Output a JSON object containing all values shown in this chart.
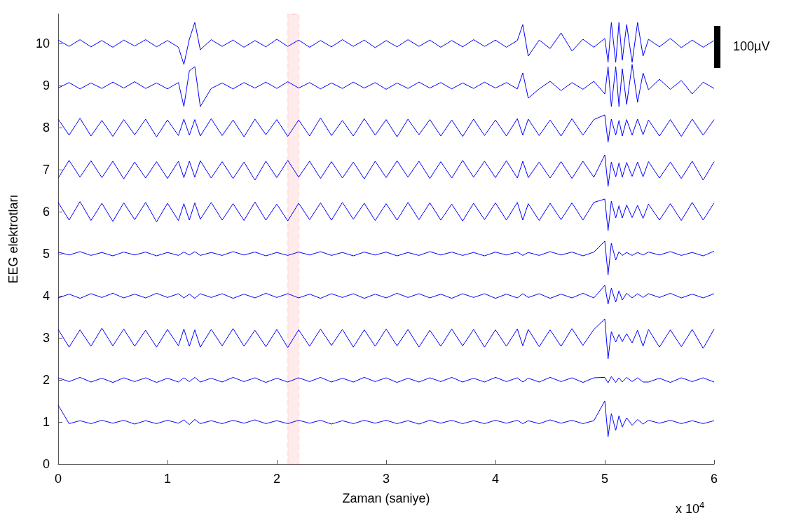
{
  "chart_data": {
    "type": "line",
    "xlabel": "Zaman (saniye)",
    "ylabel": "EEG elektrotları",
    "annotations": [
      "x 10$^{4}$",
      "100µV"
    ],
    "x": [
      0,
      0.1,
      0.2,
      0.3,
      0.4,
      0.5,
      0.6,
      0.7,
      0.8,
      0.9,
      1,
      1.1,
      1.15,
      1.2,
      1.25,
      1.3,
      1.4,
      1.5,
      1.6,
      1.7,
      1.8,
      1.9,
      2,
      2.1,
      2.2,
      2.3,
      2.4,
      2.5,
      2.6,
      2.7,
      2.8,
      2.9,
      3,
      3.1,
      3.2,
      3.3,
      3.4,
      3.5,
      3.6,
      3.7,
      3.8,
      3.9,
      4,
      4.1,
      4.2,
      4.25,
      4.3,
      4.4,
      4.5,
      4.6,
      4.7,
      4.8,
      4.9,
      5,
      5.03,
      5.06,
      5.1,
      5.13,
      5.16,
      5.2,
      5.25,
      5.3,
      5.35,
      5.4,
      5.5,
      5.6,
      5.7,
      5.8,
      5.9,
      6
    ],
    "xlim": [
      0,
      6
    ],
    "xticks": [
      0,
      1,
      2,
      3,
      4,
      5,
      6
    ],
    "ylim": [
      0,
      10.7
    ],
    "yticks": [
      0,
      1,
      2,
      3,
      4,
      5,
      6,
      7,
      8,
      9,
      10
    ],
    "bands": [
      {
        "axis": "x",
        "from": 2.1,
        "to": 2.2,
        "color": "#ff0000"
      }
    ],
    "series": [
      {
        "color": "#0000ff",
        "values": [
          10.08,
          9.93,
          10.09,
          9.92,
          10.07,
          9.91,
          10.08,
          9.94,
          10.09,
          9.92,
          10.07,
          9.91,
          9.5,
          10.1,
          10.5,
          9.85,
          10.09,
          9.93,
          10.08,
          9.91,
          10.07,
          9.92,
          10.1,
          9.93,
          10.08,
          9.91,
          10.07,
          9.92,
          10.09,
          9.93,
          10.08,
          9.9,
          10.07,
          9.92,
          10.09,
          9.93,
          10.08,
          9.91,
          10.07,
          9.92,
          10.09,
          9.93,
          10.08,
          9.91,
          10.07,
          10.45,
          9.7,
          10.08,
          9.88,
          10.25,
          9.82,
          10.1,
          9.91,
          10.12,
          9.55,
          10.5,
          9.55,
          10.5,
          9.6,
          10.45,
          9.55,
          10.5,
          9.7,
          10.1,
          9.92,
          10.12,
          9.9,
          10.08,
          9.91,
          10.07
        ]
      },
      {
        "color": "#0000ff",
        "values": [
          8.94,
          9.07,
          8.92,
          9.06,
          8.93,
          9.08,
          8.94,
          9.09,
          8.93,
          9.06,
          8.92,
          9.07,
          8.5,
          9.35,
          9.45,
          8.5,
          8.93,
          9.06,
          8.92,
          9.07,
          8.94,
          9.08,
          8.93,
          9.09,
          8.94,
          9.07,
          8.92,
          9.06,
          8.93,
          9.08,
          8.94,
          9.07,
          8.91,
          9.06,
          8.93,
          9.08,
          8.94,
          9.07,
          8.92,
          9.06,
          8.93,
          9.08,
          8.94,
          9.07,
          8.92,
          9.3,
          8.7,
          8.92,
          9.1,
          8.88,
          9.07,
          8.91,
          9.1,
          8.8,
          9.45,
          8.5,
          9.45,
          8.5,
          9.4,
          8.55,
          9.5,
          8.6,
          9.3,
          8.9,
          9.15,
          8.91,
          9.12,
          8.8,
          9.08,
          8.93
        ]
      },
      {
        "color": "#0000ff",
        "values": [
          8.2,
          7.82,
          8.22,
          7.8,
          8.17,
          7.79,
          8.19,
          7.83,
          8.2,
          7.78,
          8.18,
          7.81,
          8.2,
          7.82,
          8.19,
          7.8,
          8.21,
          7.81,
          8.18,
          7.78,
          8.2,
          7.83,
          8.19,
          7.79,
          8.18,
          7.8,
          8.23,
          7.81,
          8.17,
          7.8,
          8.21,
          7.82,
          8.19,
          7.78,
          8.2,
          7.83,
          8.19,
          7.8,
          8.18,
          7.79,
          8.2,
          7.81,
          8.18,
          7.8,
          8.21,
          7.82,
          8.2,
          7.81,
          8.18,
          7.8,
          8.21,
          7.82,
          8.19,
          8.3,
          7.65,
          8.2,
          7.82,
          8.17,
          7.8,
          8.19,
          7.82,
          8.2,
          7.83,
          8.18,
          7.8,
          8.19,
          7.79,
          8.2,
          7.82,
          8.19
        ]
      },
      {
        "color": "#0000ff",
        "values": [
          6.8,
          7.22,
          6.82,
          7.21,
          6.81,
          7.2,
          6.78,
          7.18,
          6.8,
          7.19,
          6.79,
          7.2,
          6.81,
          7.2,
          6.82,
          7.21,
          6.8,
          7.19,
          6.79,
          7.18,
          6.75,
          7.2,
          6.81,
          7.22,
          6.82,
          7.2,
          6.79,
          7.19,
          6.8,
          7.18,
          6.78,
          7.2,
          6.81,
          7.21,
          6.82,
          7.2,
          6.79,
          7.19,
          6.8,
          7.22,
          6.82,
          7.2,
          6.81,
          7.21,
          6.8,
          7.2,
          6.81,
          7.18,
          6.8,
          7.19,
          6.79,
          7.2,
          6.82,
          7.35,
          6.6,
          7.18,
          6.83,
          7.16,
          6.82,
          7.17,
          6.84,
          7.18,
          6.83,
          7.19,
          6.8,
          7.18,
          6.79,
          7.2,
          6.75,
          7.19
        ]
      },
      {
        "color": "#0000ff",
        "values": [
          6.22,
          5.8,
          6.24,
          5.79,
          6.2,
          5.77,
          6.21,
          5.81,
          6.22,
          5.76,
          6.2,
          5.79,
          6.19,
          5.8,
          6.21,
          5.82,
          6.22,
          5.8,
          6.19,
          5.79,
          6.23,
          5.8,
          6.18,
          5.78,
          6.2,
          5.81,
          6.21,
          5.8,
          6.22,
          5.82,
          6.2,
          5.79,
          6.19,
          5.8,
          6.22,
          5.81,
          6.21,
          5.8,
          6.18,
          5.78,
          6.2,
          5.81,
          6.21,
          5.8,
          6.22,
          5.8,
          6.19,
          5.79,
          6.2,
          5.81,
          6.21,
          5.8,
          6.22,
          6.3,
          5.55,
          6.25,
          5.85,
          6.14,
          5.85,
          6.16,
          5.86,
          6.15,
          5.84,
          6.18,
          5.8,
          6.19,
          5.79,
          6.22,
          5.8,
          6.21
        ]
      },
      {
        "color": "#0000ff",
        "values": [
          5.04,
          4.97,
          5.05,
          4.96,
          5.03,
          4.95,
          5.04,
          4.97,
          5.04,
          4.95,
          5.03,
          4.96,
          5.04,
          4.97,
          5.05,
          4.96,
          5.03,
          4.96,
          5.05,
          4.97,
          5.04,
          4.95,
          5.03,
          4.96,
          5.04,
          4.97,
          5.05,
          4.96,
          5.03,
          4.95,
          5.04,
          4.97,
          5.04,
          4.95,
          5.03,
          4.96,
          5.05,
          4.97,
          5.04,
          4.96,
          5.03,
          4.95,
          5.04,
          4.97,
          5.04,
          4.96,
          5.03,
          4.96,
          5.05,
          4.97,
          5.04,
          4.95,
          5.04,
          5.3,
          4.5,
          5.25,
          4.85,
          5.05,
          4.96,
          5.03,
          4.96,
          5.03,
          4.97,
          5.04,
          4.97,
          5.05,
          4.96,
          5.03,
          4.95,
          5.06
        ]
      },
      {
        "color": "#0000ff",
        "values": [
          3.95,
          4.04,
          3.94,
          4.05,
          3.96,
          4.06,
          3.95,
          4.04,
          3.95,
          4.06,
          3.96,
          4.05,
          3.95,
          4.04,
          3.94,
          4.05,
          3.96,
          4.05,
          3.94,
          4.04,
          3.95,
          4.06,
          3.96,
          4.05,
          3.95,
          4.04,
          3.94,
          4.05,
          3.96,
          4.05,
          3.94,
          4.04,
          3.95,
          4.06,
          3.96,
          4.05,
          3.95,
          4.04,
          3.94,
          4.05,
          3.96,
          4.05,
          3.94,
          4.04,
          3.95,
          4.05,
          3.96,
          4.05,
          3.94,
          4.04,
          3.95,
          4.06,
          3.95,
          4.25,
          3.8,
          4.18,
          3.85,
          4.12,
          3.9,
          4.06,
          3.95,
          4.05,
          3.96,
          4.05,
          3.96,
          4.06,
          3.95,
          4.04,
          3.95,
          4.05
        ]
      },
      {
        "color": "#0000ff",
        "values": [
          3.2,
          2.78,
          3.19,
          2.8,
          3.23,
          2.81,
          3.21,
          2.8,
          3.18,
          2.78,
          3.2,
          2.81,
          3.21,
          2.8,
          3.19,
          2.78,
          3.2,
          2.81,
          3.22,
          2.8,
          3.18,
          2.79,
          3.2,
          2.77,
          3.19,
          2.8,
          3.21,
          2.82,
          3.2,
          2.78,
          3.19,
          2.8,
          3.21,
          2.81,
          3.2,
          2.78,
          3.18,
          2.8,
          3.21,
          2.81,
          3.2,
          2.78,
          3.19,
          2.8,
          3.21,
          2.81,
          3.2,
          2.79,
          3.19,
          2.8,
          3.22,
          2.82,
          3.2,
          3.45,
          2.5,
          3.15,
          2.9,
          3.08,
          2.91,
          3.1,
          2.88,
          3.18,
          2.8,
          3.2,
          2.78,
          3.19,
          2.79,
          3.2,
          2.75,
          3.21
        ]
      },
      {
        "color": "#0000ff",
        "values": [
          2.05,
          1.96,
          2.06,
          1.95,
          2.04,
          1.94,
          2.05,
          1.96,
          2.05,
          1.94,
          2.04,
          1.95,
          2.05,
          1.96,
          2.06,
          1.95,
          2.04,
          1.95,
          2.06,
          1.96,
          2.05,
          1.94,
          2.04,
          1.95,
          2.05,
          1.96,
          2.06,
          1.95,
          2.04,
          1.95,
          2.06,
          1.96,
          2.05,
          1.94,
          2.04,
          1.95,
          2.05,
          1.96,
          2.06,
          1.95,
          2.04,
          1.95,
          2.06,
          1.96,
          2.05,
          1.95,
          2.04,
          1.95,
          2.06,
          1.96,
          2.05,
          1.94,
          2.05,
          2.06,
          1.93,
          2.08,
          1.94,
          2.05,
          1.95,
          2.06,
          1.96,
          2.05,
          1.95,
          1.95,
          2.04,
          1.94,
          2.05,
          1.96,
          2.05,
          1.95
        ]
      },
      {
        "color": "#0000ff",
        "values": [
          1.4,
          0.96,
          1.03,
          0.96,
          1.04,
          0.97,
          1.04,
          0.95,
          1.03,
          0.96,
          1.04,
          0.97,
          1.05,
          0.94,
          1.06,
          0.96,
          1.03,
          0.96,
          1.04,
          0.97,
          1.05,
          0.96,
          1.03,
          0.96,
          1.04,
          0.97,
          1.04,
          0.95,
          1.03,
          0.96,
          1.04,
          0.97,
          1.04,
          0.96,
          1.03,
          0.95,
          1.04,
          0.97,
          1.04,
          0.96,
          1.03,
          0.96,
          1.04,
          0.97,
          1.04,
          0.96,
          1.03,
          0.96,
          1.05,
          0.97,
          1.04,
          0.96,
          1.03,
          1.5,
          0.65,
          1.2,
          0.8,
          1.15,
          0.88,
          1.1,
          0.92,
          1.06,
          0.95,
          1.04,
          0.97,
          1.04,
          0.96,
          1.03,
          0.96,
          1.03
        ]
      }
    ]
  }
}
